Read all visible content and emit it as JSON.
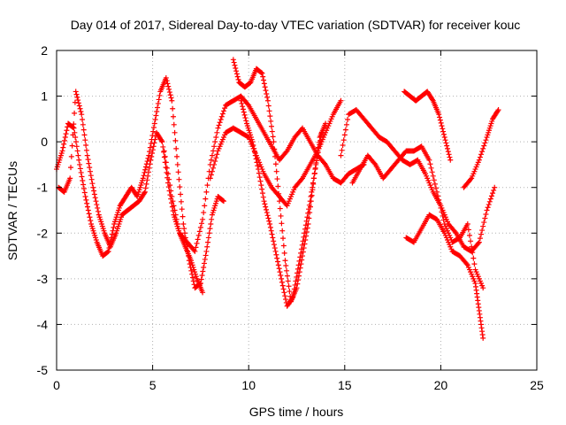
{
  "chart_data": {
    "type": "scatter",
    "title": "Day 014 of 2017, Sidereal Day-to-day VTEC variation (SDTVAR) for receiver kouc",
    "xlabel": "GPS time / hours",
    "ylabel": "SDTVAR / TECUs",
    "xlim": [
      0,
      25
    ],
    "ylim": [
      -5,
      2
    ],
    "xticks": [
      "0",
      "5",
      "10",
      "15",
      "20",
      "25"
    ],
    "yticks": [
      "-5",
      "-4",
      "-3",
      "-2",
      "-1",
      "0",
      "1",
      "2"
    ],
    "grid": true,
    "marker": "+",
    "color": "#ff0000",
    "series": [
      {
        "x": [
          0.0,
          0.3,
          0.6,
          0.9,
          1.2,
          1.5,
          1.8,
          2.1,
          2.4,
          2.7,
          3.0,
          3.3,
          3.6,
          3.9,
          4.2,
          4.5,
          4.8,
          5.1,
          5.4,
          5.7,
          6.0,
          6.3,
          6.6,
          6.9,
          7.2,
          7.5,
          7.8,
          8.1,
          8.4,
          8.7
        ],
        "y": [
          -0.6,
          -0.2,
          0.4,
          0.3,
          -0.5,
          -1.2,
          -1.8,
          -2.2,
          -2.5,
          -2.4,
          -1.8,
          -1.4,
          -1.2,
          -1.0,
          -1.2,
          -0.8,
          -0.3,
          0.4,
          1.1,
          1.4,
          0.9,
          -0.5,
          -1.8,
          -2.6,
          -3.2,
          -3.1,
          -2.4,
          -1.6,
          -1.2,
          -1.3
        ]
      },
      {
        "x": [
          0.1,
          0.4,
          0.7,
          1.0,
          1.3,
          1.6,
          1.9,
          2.2,
          2.5,
          2.8,
          3.1,
          3.4,
          3.7,
          4.0,
          4.3,
          4.6,
          4.9,
          5.2,
          5.5,
          5.8,
          6.1,
          6.4,
          6.7,
          7.0,
          7.3,
          7.6
        ],
        "y": [
          -1.0,
          -1.1,
          -0.8,
          1.1,
          0.6,
          -0.3,
          -1.0,
          -1.6,
          -2.0,
          -2.3,
          -2.0,
          -1.6,
          -1.5,
          -1.4,
          -1.3,
          -1.1,
          -0.4,
          0.2,
          0.0,
          -0.9,
          -1.6,
          -2.0,
          -2.3,
          -2.6,
          -3.0,
          -3.3
        ]
      },
      {
        "x": [
          5.6,
          6.0,
          6.4,
          6.8,
          7.2,
          7.6,
          8.0,
          8.4,
          8.8,
          9.2,
          9.6,
          10.0,
          10.4,
          10.8,
          11.2,
          11.6,
          12.0,
          12.4,
          12.8,
          13.2,
          13.6,
          14.0,
          14.4,
          14.8,
          15.2,
          15.6,
          16.0
        ],
        "y": [
          -0.2,
          -1.2,
          -2.0,
          -2.2,
          -2.4,
          -1.7,
          -0.5,
          0.3,
          0.8,
          0.9,
          1.0,
          0.8,
          0.5,
          0.2,
          -0.1,
          -0.4,
          -0.2,
          0.1,
          0.3,
          0.0,
          -0.3,
          -0.5,
          -0.8,
          -0.9,
          -0.7,
          -0.6,
          -0.5
        ]
      },
      {
        "x": [
          8.0,
          8.4,
          8.8,
          9.2,
          9.6,
          10.0,
          10.4,
          10.8,
          11.2,
          11.6,
          12.0,
          12.4,
          12.8,
          13.2,
          13.6,
          14.0,
          14.4,
          14.8
        ],
        "y": [
          -0.8,
          -0.2,
          0.2,
          0.3,
          0.2,
          0.1,
          -0.3,
          -0.7,
          -1.0,
          -1.2,
          -1.4,
          -1.0,
          -0.8,
          -0.5,
          -0.2,
          0.2,
          0.6,
          0.9
        ]
      },
      {
        "x": [
          9.2,
          9.5,
          9.8,
          10.1,
          10.4,
          10.7,
          11.0,
          11.3,
          11.6,
          11.9,
          12.2,
          12.5,
          12.8,
          13.1,
          13.4,
          13.7,
          14.0
        ],
        "y": [
          1.8,
          1.3,
          1.2,
          1.3,
          1.6,
          1.5,
          0.9,
          0.0,
          -1.3,
          -2.6,
          -3.5,
          -3.2,
          -2.5,
          -1.8,
          -0.8,
          0.1,
          0.4
        ]
      },
      {
        "x": [
          9.6,
          9.9,
          10.2,
          10.5,
          10.8,
          11.1,
          11.4,
          11.7,
          12.0,
          12.3,
          12.6,
          12.9,
          13.2,
          13.5,
          13.8
        ],
        "y": [
          0.9,
          0.4,
          0.0,
          -0.6,
          -1.3,
          -1.8,
          -2.4,
          -3.0,
          -3.6,
          -3.4,
          -2.7,
          -2.0,
          -1.3,
          -0.5,
          0.2
        ]
      },
      {
        "x": [
          14.8,
          15.2,
          15.6,
          16.0,
          16.4,
          16.8,
          17.2,
          17.6,
          18.0,
          18.4,
          18.8,
          19.2,
          19.6,
          20.0,
          20.4,
          20.8,
          21.2,
          21.6,
          22.0,
          22.4,
          22.8
        ],
        "y": [
          -0.3,
          0.6,
          0.7,
          0.5,
          0.3,
          0.1,
          0.0,
          -0.2,
          -0.4,
          -0.5,
          -0.4,
          -0.7,
          -1.1,
          -1.4,
          -1.8,
          -2.0,
          -2.3,
          -2.4,
          -2.2,
          -1.5,
          -1.0
        ]
      },
      {
        "x": [
          15.4,
          15.8,
          16.2,
          16.6,
          17.0,
          17.4,
          17.8,
          18.2,
          18.6,
          19.0,
          19.4,
          19.8,
          20.2,
          20.6,
          21.0,
          21.4,
          21.8,
          22.2
        ],
        "y": [
          -0.9,
          -0.6,
          -0.3,
          -0.5,
          -0.8,
          -0.6,
          -0.4,
          -0.2,
          -0.2,
          -0.1,
          -0.4,
          -1.1,
          -1.8,
          -2.2,
          -2.1,
          -1.8,
          -2.8,
          -3.2
        ]
      },
      {
        "x": [
          18.1,
          18.4,
          18.7,
          19.0,
          19.3,
          19.6,
          19.9,
          20.2,
          20.5
        ],
        "y": [
          1.1,
          1.0,
          0.9,
          1.0,
          1.1,
          0.9,
          0.6,
          0.1,
          -0.4
        ]
      },
      {
        "x": [
          18.2,
          18.6,
          19.0,
          19.4,
          19.8,
          20.2,
          20.6,
          21.0,
          21.4,
          21.8,
          22.0,
          22.2
        ],
        "y": [
          -2.1,
          -2.2,
          -1.9,
          -1.6,
          -1.7,
          -2.0,
          -2.4,
          -2.5,
          -2.7,
          -3.1,
          -3.7,
          -4.3
        ]
      },
      {
        "x": [
          21.2,
          21.6,
          22.0,
          22.4,
          22.7,
          23.0
        ],
        "y": [
          -1.0,
          -0.8,
          -0.4,
          0.1,
          0.5,
          0.7
        ]
      }
    ]
  }
}
